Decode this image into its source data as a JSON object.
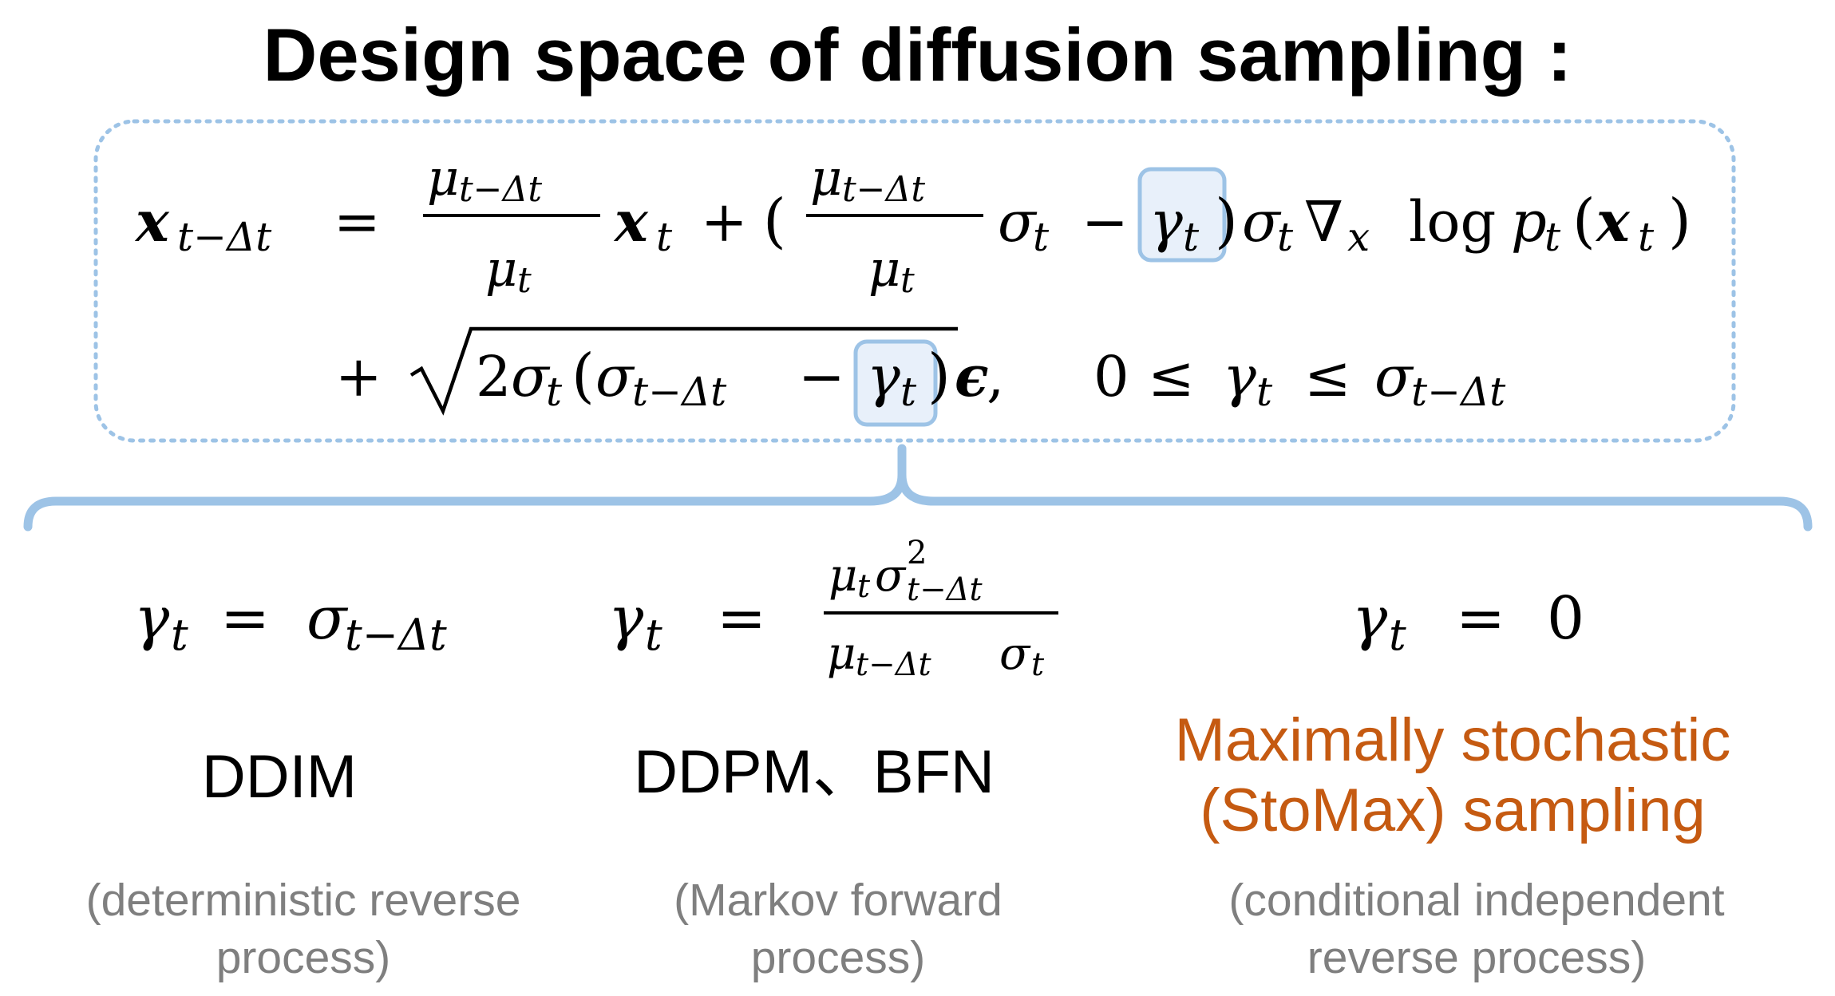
{
  "title": "Design space of diffusion sampling :",
  "colors": {
    "box_border": "#9dc3e6",
    "highlight_fill": "#e8f0fa",
    "highlight_border": "#9dc3e6",
    "brace": "#9dc3e6",
    "text": "#000000",
    "note": "#7f7f7f",
    "accent": "#c55a11"
  },
  "equation": {
    "line1": "x_{t−Δt} = (μ_{t−Δt}/μ_t) x_t + ((μ_{t−Δt}/μ_t) σ_t − γ_t) σ_t ∇_x log p_t(x_t)",
    "line2": "+ √(2σ_t(σ_{t−Δt} − γ_t)) ε,   0 ≤ γ_t ≤ σ_{t−Δt}"
  },
  "cases": [
    {
      "formula": "γ_t = σ_{t−Δt}",
      "method": "DDIM",
      "note_line1": "(deterministic reverse",
      "note_line2": "process)"
    },
    {
      "formula": "γ_t = μ_t σ²_{t−Δt} / (μ_{t−Δt} σ_t)",
      "method": "DDPM、BFN",
      "note_line1": "(Markov forward",
      "note_line2": "process)"
    },
    {
      "formula": "γ_t = 0",
      "method_line1": "Maximally stochastic",
      "method_line2": "(StoMax) sampling",
      "note_line1": "(conditional independent",
      "note_line2": "reverse process)"
    }
  ]
}
